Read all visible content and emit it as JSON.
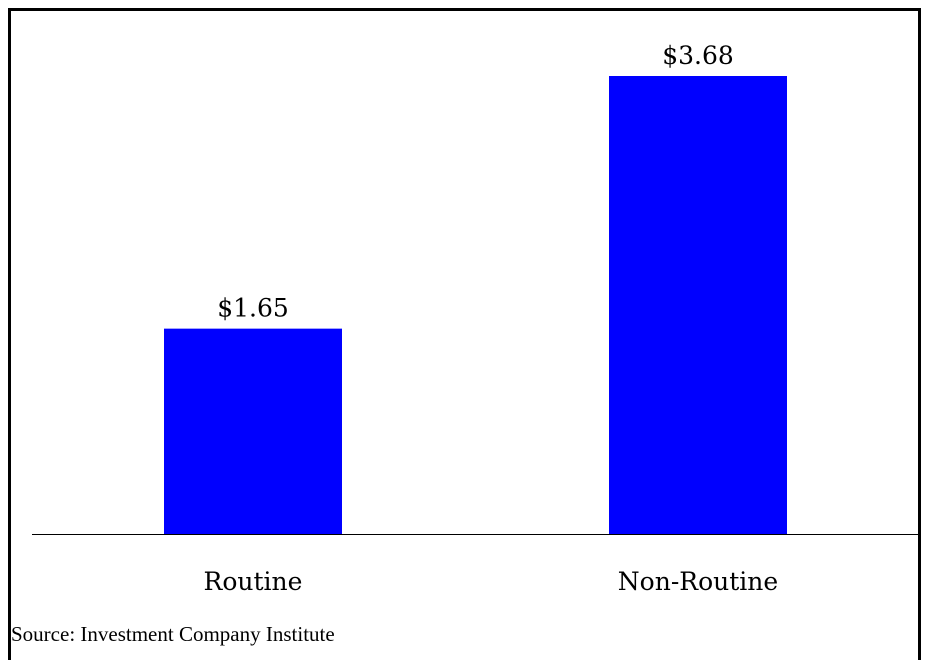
{
  "colors": {
    "bar": "#0000ff",
    "axis": "#000000",
    "background": "#ffffff"
  },
  "source": "Source: Investment Company Institute",
  "chart_data": {
    "type": "bar",
    "title": "",
    "xlabel": "",
    "ylabel": "",
    "categories": [
      "Routine",
      "Non-Routine"
    ],
    "values": [
      1.65,
      3.68
    ],
    "value_labels": [
      "$1.65",
      "$3.68"
    ],
    "ylim": [
      0,
      3.68
    ],
    "grid": false,
    "legend": "none"
  }
}
